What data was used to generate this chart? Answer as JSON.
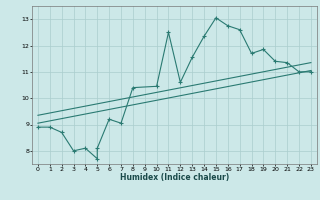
{
  "xlabel": "Humidex (Indice chaleur)",
  "background_color": "#cce8e8",
  "line_color": "#2a7a72",
  "grid_color": "#aacece",
  "xlim": [
    -0.5,
    23.5
  ],
  "ylim": [
    7.5,
    13.5
  ],
  "xticks": [
    0,
    1,
    2,
    3,
    4,
    5,
    6,
    7,
    8,
    9,
    10,
    11,
    12,
    13,
    14,
    15,
    16,
    17,
    18,
    19,
    20,
    21,
    22,
    23
  ],
  "yticks": [
    8,
    9,
    10,
    11,
    12,
    13
  ],
  "line_pts_x": [
    0,
    1,
    2,
    3,
    4,
    5,
    5,
    6,
    7,
    8,
    10,
    11,
    12,
    13,
    14,
    15,
    16,
    17,
    18,
    19,
    20,
    21,
    22,
    23
  ],
  "line_pts_y": [
    8.9,
    8.9,
    8.7,
    8.0,
    8.1,
    7.7,
    8.1,
    9.2,
    9.05,
    10.4,
    10.45,
    12.5,
    10.6,
    11.55,
    12.35,
    13.05,
    12.75,
    12.6,
    11.7,
    11.85,
    11.4,
    11.35,
    11.0,
    11.0
  ],
  "trend1_x": [
    0,
    23
  ],
  "trend1_y": [
    9.05,
    11.05
  ],
  "trend2_x": [
    0,
    23
  ],
  "trend2_y": [
    9.35,
    11.35
  ],
  "figsize": [
    3.2,
    2.0
  ],
  "dpi": 100
}
